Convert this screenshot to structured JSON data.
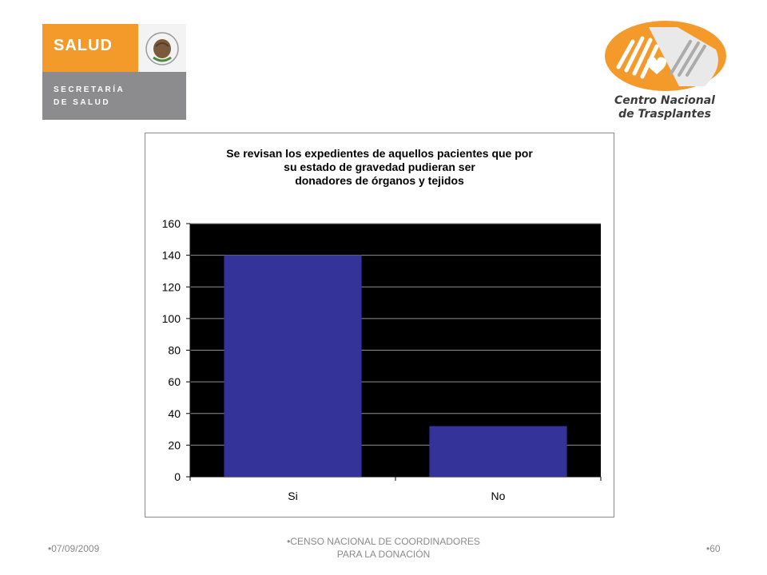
{
  "logos": {
    "salud": {
      "word": "SALUD",
      "line1": "SECRETARÍA",
      "line2": "DE SALUD",
      "color_orange": "#f39a2b",
      "color_grey": "#8c8c8e"
    },
    "cenatra": {
      "line1": "Centro Nacional",
      "line2": "de Trasplantes",
      "color_orange": "#f39a2b",
      "color_grey": "#bdbdbd"
    }
  },
  "chart_data": {
    "type": "bar",
    "title": "Se revisan los expedientes de aquellos pacientes que por\nsu estado de gravedad pudieran ser\ndonadores de órganos y tejidos",
    "categories": [
      "Si",
      "No"
    ],
    "values": [
      140,
      32
    ],
    "ylim": [
      0,
      160
    ],
    "yticks": [
      0,
      20,
      40,
      60,
      80,
      100,
      120,
      140,
      160
    ],
    "grid": true,
    "plot_background": "#000000",
    "bar_color": "#333399",
    "xlabel": "",
    "ylabel": ""
  },
  "footer": {
    "date": "•07/09/2009",
    "center": "•CENSO NACIONAL DE COORDINADORES\nPARA LA DONACIÓN",
    "page": "•60"
  }
}
